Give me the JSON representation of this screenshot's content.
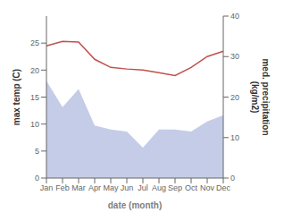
{
  "chart_data": {
    "type": "line",
    "categories": [
      "Jan",
      "Feb",
      "Mar",
      "Apr",
      "May",
      "Jun",
      "Jul",
      "Aug",
      "Sep",
      "Oct",
      "Nov",
      "Dec"
    ],
    "series": [
      {
        "type": "area",
        "color": "#c5cce8",
        "axis": "y2",
        "values": [
          24,
          17.5,
          22,
          13,
          12,
          11.5,
          7.5,
          12,
          12,
          11.5,
          14,
          15.5
        ]
      },
      {
        "type": "line",
        "color": "#c0504d",
        "values": [
          24.5,
          25.3,
          25.2,
          22.0,
          20.5,
          20.2,
          20.0,
          19.5,
          19.0,
          20.5,
          22.5,
          23.5
        ]
      }
    ],
    "xlabel": "date (month)",
    "ylabel": "max temp (C)",
    "y2label": "med. precipitation\n(kg/m2)",
    "ylim": [
      0,
      30
    ],
    "yticks": [
      0,
      5,
      10,
      15,
      20,
      25
    ],
    "y2lim": [
      0,
      40
    ],
    "y2ticks": [
      0,
      10,
      20,
      30,
      40
    ],
    "grid": false
  }
}
